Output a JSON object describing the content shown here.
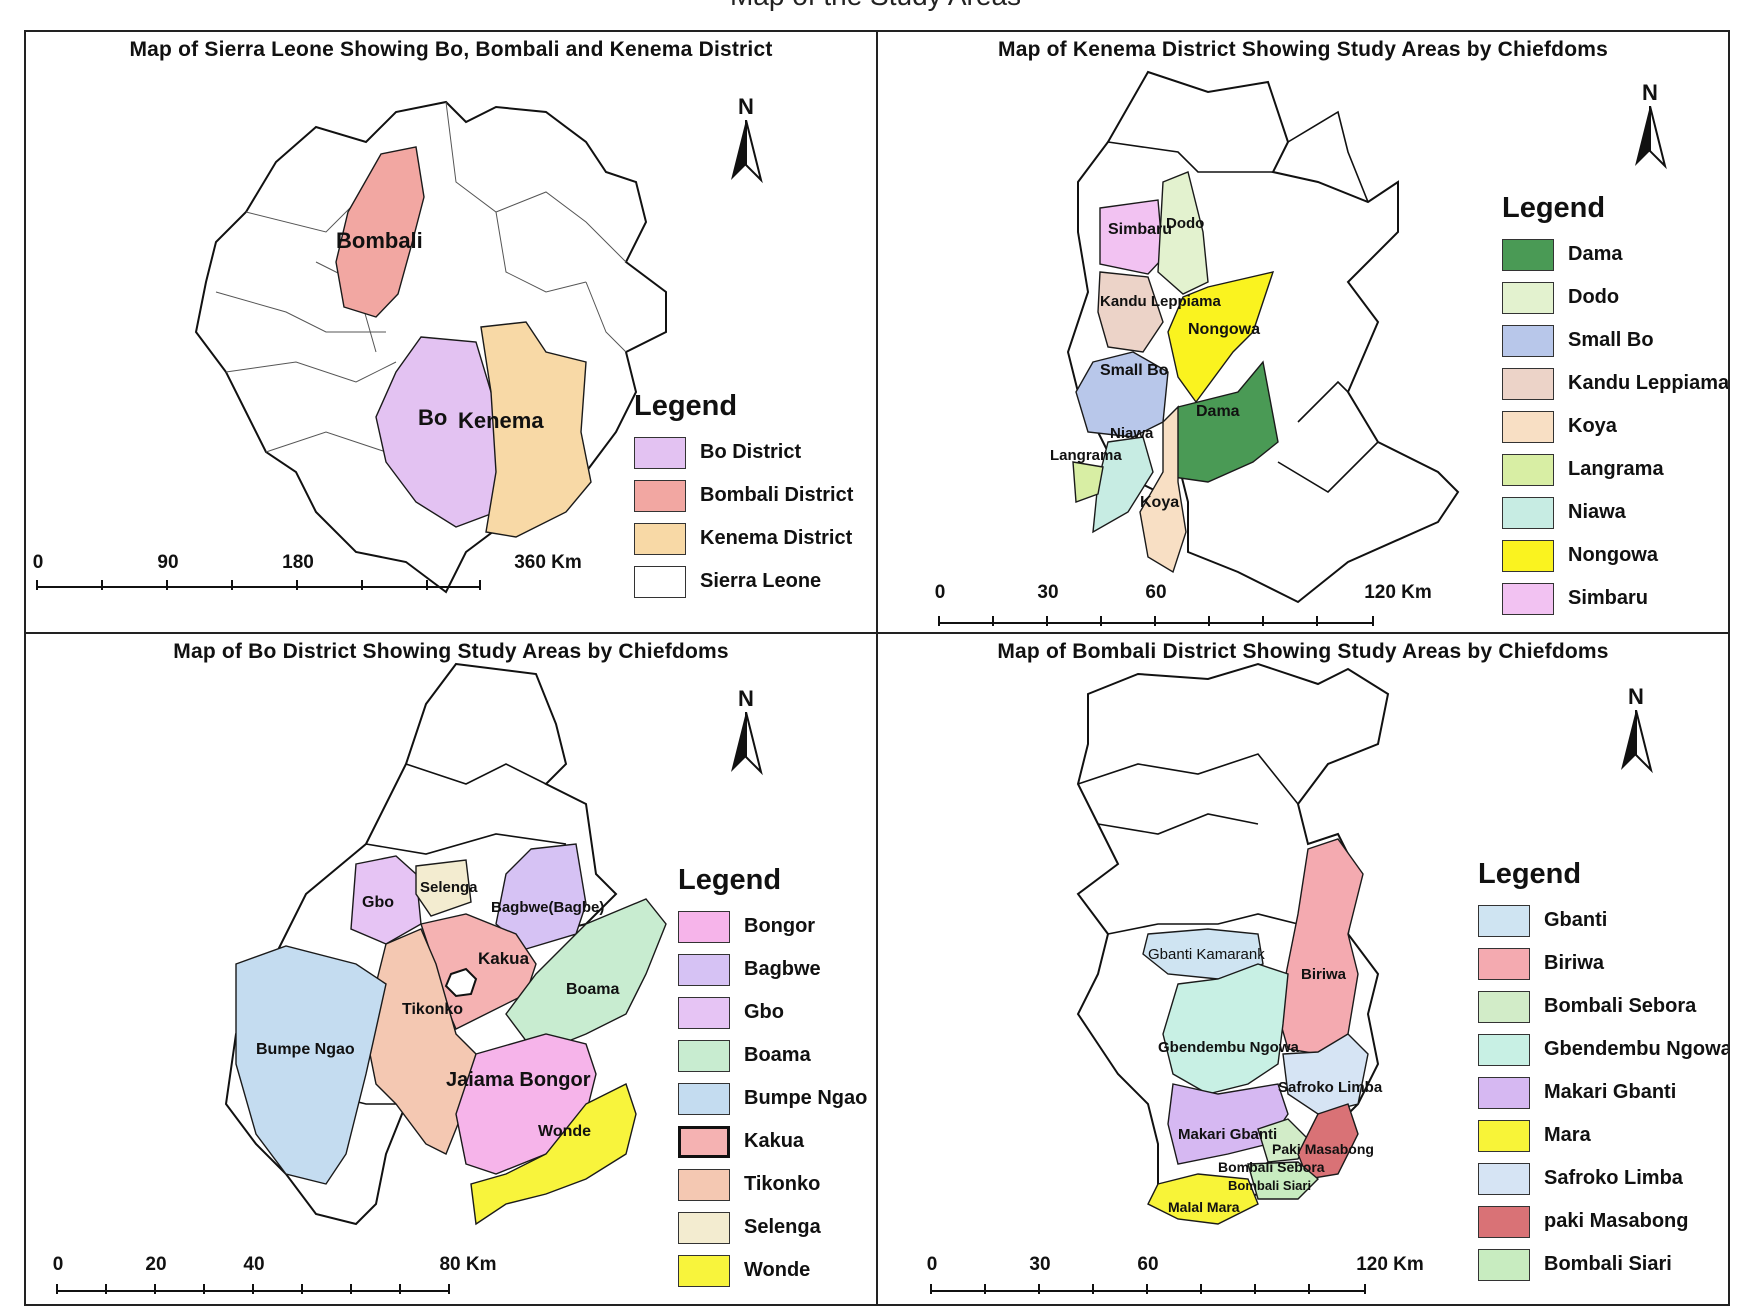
{
  "figure_title": "Map of the Study Areas",
  "panels": [
    {
      "title": "Map of Sierra Leone Showing Bo, Bombali and Kenema District",
      "north": "N",
      "legend_title": "Legend",
      "legend": [
        {
          "label": "Bo District",
          "color": "#e3c2f2"
        },
        {
          "label": "Bombali District",
          "color": "#f2a7a2"
        },
        {
          "label": "Kenema District",
          "color": "#f8d9a6"
        },
        {
          "label": "Sierra Leone",
          "color": "#ffffff"
        }
      ],
      "map_labels": {
        "bombali": "Bombali",
        "bo": "Bo",
        "kenema": "Kenema"
      },
      "scale": [
        "0",
        "90",
        "180",
        "360 Km"
      ]
    },
    {
      "title": "Map of Kenema District Showing Study Areas by Chiefdoms",
      "north": "N",
      "legend_title": "Legend",
      "legend": [
        {
          "label": "Dama",
          "color": "#4a9a55"
        },
        {
          "label": "Dodo",
          "color": "#e3f2cf"
        },
        {
          "label": "Small Bo",
          "color": "#b8c7ea"
        },
        {
          "label": "Kandu Leppiama",
          "color": "#ecd3c8"
        },
        {
          "label": "Koya",
          "color": "#f8dfc4"
        },
        {
          "label": "Langrama",
          "color": "#d8eea4"
        },
        {
          "label": "Niawa",
          "color": "#c7ece3"
        },
        {
          "label": "Nongowa",
          "color": "#faf31f"
        },
        {
          "label": "Simbaru",
          "color": "#f2c2f2"
        }
      ],
      "map_labels": {
        "simbaru": "Simbaru",
        "dodo": "Dodo",
        "kandu": "Kandu Leppiama",
        "nongowa": "Nongowa",
        "smallbo": "Small Bo",
        "dama": "Dama",
        "niawa": "Niawa",
        "langrama": "Langrama",
        "koya": "Koya"
      },
      "scale": [
        "0",
        "30",
        "60",
        "120 Km"
      ]
    },
    {
      "title": "Map of Bo District Showing Study Areas by Chiefdoms",
      "north": "N",
      "legend_title": "Legend",
      "legend": [
        {
          "label": "Bongor",
          "color": "#f6b4ea"
        },
        {
          "label": "Bagbwe",
          "color": "#d6c2f4"
        },
        {
          "label": "Gbo",
          "color": "#e6c4f4"
        },
        {
          "label": "Boama",
          "color": "#c8ecd0"
        },
        {
          "label": "Bumpe Ngao",
          "color": "#c4dcf0"
        },
        {
          "label": "Kakua",
          "color": "#f5b2b2"
        },
        {
          "label": "Tikonko",
          "color": "#f4c8b2"
        },
        {
          "label": "Selenga",
          "color": "#f3ecd0"
        },
        {
          "label": "Wonde",
          "color": "#f8f43c"
        }
      ],
      "map_labels": {
        "gbo": "Gbo",
        "selenga": "Selenga",
        "bagbwe": "Bagbwe(Bagbe)",
        "kakua": "Kakua",
        "boama": "Boama",
        "tikonko": "Tikonko",
        "bumpe": "Bumpe Ngao",
        "bongor": "Jaiama Bongor",
        "wonde": "Wonde"
      },
      "scale": [
        "0",
        "20",
        "40",
        "80 Km"
      ]
    },
    {
      "title": "Map of Bombali District Showing Study Areas by Chiefdoms",
      "north": "N",
      "legend_title": "Legend",
      "legend": [
        {
          "label": "Gbanti",
          "color": "#cfe4f2"
        },
        {
          "label": "Biriwa",
          "color": "#f4aab0"
        },
        {
          "label": "Bombali Sebora",
          "color": "#d2ecc8"
        },
        {
          "label": "Gbendembu Ngowa",
          "color": "#c8f0e4"
        },
        {
          "label": "Makari Gbanti",
          "color": "#d6b8f2"
        },
        {
          "label": "Mara",
          "color": "#f8f438"
        },
        {
          "label": "Safroko Limba",
          "color": "#d6e4f4"
        },
        {
          "label": "paki Masabong",
          "color": "#d97276"
        },
        {
          "label": "Bombali Siari",
          "color": "#c8ecc0"
        }
      ],
      "map_labels": {
        "gbanti": "Gbanti Kamarank",
        "biriwa": "Biriwa",
        "gbendembu": "Gbendembu Ngowa",
        "safroko": "Safroko Limba",
        "makari": "Makari Gbanti",
        "paki": "Paki Masabong",
        "sebora": "Bombali Sebora",
        "siari": "Bombali Siari",
        "mara": "Malal Mara"
      },
      "scale": [
        "0",
        "30",
        "60",
        "120 Km"
      ]
    }
  ]
}
